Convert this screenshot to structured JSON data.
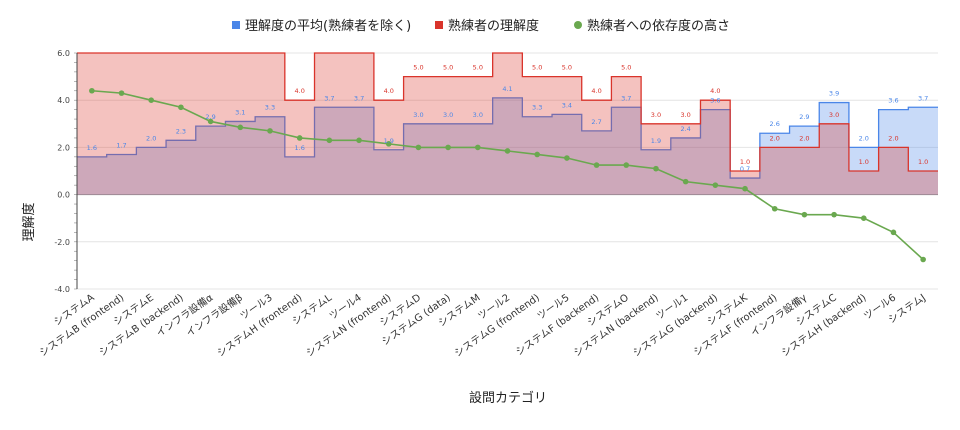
{
  "chart_data": {
    "type": "area",
    "title": "",
    "xlabel": "設問カテゴリ",
    "ylabel": "理解度",
    "ylim": [
      -4,
      6
    ],
    "yticks": [
      6,
      4,
      2,
      0,
      -2,
      -4
    ],
    "ytick_labels": [
      "6.0",
      "4.0",
      "2.0",
      "0.0",
      "-2.0",
      "-4.0"
    ],
    "grid": true,
    "legend_position": "top",
    "categories": [
      "システムA",
      "システムB (frontend)",
      "システムE",
      "システムB (backend)",
      "インフラ設備α",
      "インフラ設備β",
      "ツール3",
      "システムH (frontend)",
      "システムL",
      "ツール4",
      "システムN (frontend)",
      "システムD",
      "システムG (data)",
      "システムM",
      "ツール2",
      "システムG (frontend)",
      "ツール5",
      "システムF (backend)",
      "システムO",
      "システムN (backend)",
      "ツール1",
      "システムG (backend)",
      "システムK",
      "システムF (frontend)",
      "インフラ設備γ",
      "システムC",
      "システムH (backend)",
      "ツール6",
      "システムJ"
    ],
    "series": [
      {
        "name": "理解度の平均(熟練者を除く)",
        "color": "#4a86e8",
        "style": "stepped-area",
        "values": [
          1.6,
          1.7,
          2.0,
          2.3,
          2.9,
          3.1,
          3.3,
          1.6,
          3.7,
          3.7,
          1.9,
          3.0,
          3.0,
          3.0,
          4.1,
          3.3,
          3.4,
          2.7,
          3.7,
          1.9,
          2.4,
          3.6,
          0.7,
          2.6,
          2.9,
          3.9,
          2.0,
          3.6,
          3.7
        ],
        "labels": [
          "1.6",
          "1.7",
          "2.0",
          "2.3",
          "2.9",
          "3.1",
          "3.3",
          "1.6",
          "3.7",
          "3.7",
          "1.9",
          "3.0",
          "3.0",
          "3.0",
          "4.1",
          "3.3",
          "3.4",
          "2.7",
          "3.7",
          "1.9",
          "2.4",
          "3.6",
          "0.7",
          "2.6",
          "2.9",
          "3.9",
          "2.0",
          "3.6",
          "3.7"
        ]
      },
      {
        "name": "熟練者の理解度",
        "color": "#d9342b",
        "style": "stepped-area",
        "values": [
          6.0,
          6.0,
          6.0,
          6.0,
          6.0,
          6.0,
          6.0,
          4.0,
          6.0,
          6.0,
          4.0,
          5.0,
          5.0,
          5.0,
          6.0,
          5.0,
          5.0,
          4.0,
          5.0,
          3.0,
          3.0,
          4.0,
          1.0,
          2.0,
          2.0,
          3.0,
          1.0,
          2.0,
          1.0
        ],
        "labels": [
          "",
          "",
          "",
          "",
          "",
          "",
          "",
          "4.0",
          "",
          "",
          "4.0",
          "5.0",
          "5.0",
          "5.0",
          "",
          "5.0",
          "5.0",
          "4.0",
          "5.0",
          "3.0",
          "3.0",
          "4.0",
          "1.0",
          "2.0",
          "2.0",
          "3.0",
          "1.0",
          "2.0",
          "1.0"
        ]
      },
      {
        "name": "熟練者への依存度の高さ",
        "color": "#6aa84f",
        "style": "line",
        "values": [
          4.4,
          4.3,
          4.0,
          3.7,
          3.1,
          2.85,
          2.7,
          2.4,
          2.3,
          2.3,
          2.15,
          2.0,
          2.0,
          2.0,
          1.85,
          1.7,
          1.55,
          1.25,
          1.25,
          1.1,
          0.55,
          0.4,
          0.25,
          -0.6,
          -0.85,
          -0.85,
          -1.0,
          -1.6,
          -2.75
        ]
      }
    ]
  }
}
